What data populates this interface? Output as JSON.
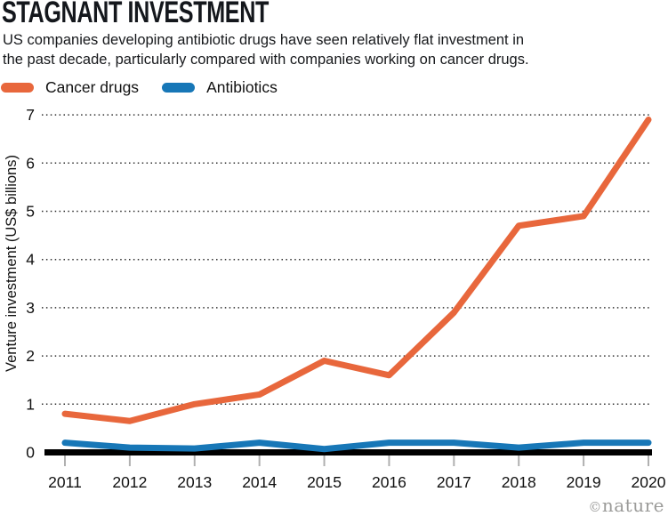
{
  "credit": "©nature",
  "chart_data": {
    "type": "line",
    "title": "STAGNANT INVESTMENT",
    "subtitle_lines": [
      "US companies developing antibiotic drugs have seen relatively flat investment in",
      "the past decade, particularly compared with companies working on cancer drugs."
    ],
    "x": [
      2011,
      2012,
      2013,
      2014,
      2015,
      2016,
      2017,
      2018,
      2019,
      2020
    ],
    "xlabel": "",
    "ylabel": "Venture investment (US$ billions)",
    "ylim": [
      0,
      7
    ],
    "yticks": [
      0,
      1,
      2,
      3,
      4,
      5,
      6,
      7
    ],
    "grid": "horizontal-dotted",
    "legend_position": "top-left",
    "series": [
      {
        "name": "Cancer drugs",
        "color": "#E8673C",
        "values": [
          0.8,
          0.65,
          1.0,
          1.2,
          1.9,
          1.6,
          2.9,
          4.7,
          4.9,
          6.9
        ]
      },
      {
        "name": "Antibiotics",
        "color": "#1777B7",
        "values": [
          0.2,
          0.1,
          0.08,
          0.2,
          0.07,
          0.2,
          0.2,
          0.1,
          0.2,
          0.2
        ]
      }
    ],
    "colors": {
      "axis": "#000000",
      "gridline": "#2e2e2e",
      "tick": "#b0b0b0",
      "text": "#111111"
    }
  }
}
